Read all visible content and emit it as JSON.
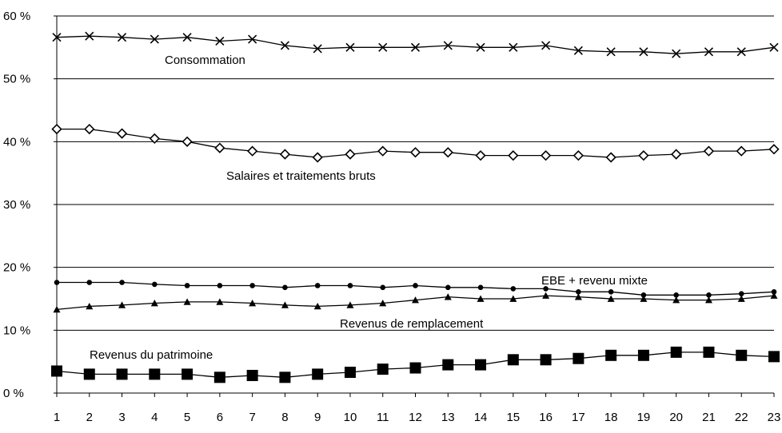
{
  "chart_data": {
    "type": "line",
    "title": "",
    "xlabel": "",
    "ylabel": "",
    "x": [
      1,
      2,
      3,
      4,
      5,
      6,
      7,
      8,
      9,
      10,
      11,
      12,
      13,
      14,
      15,
      16,
      17,
      18,
      19,
      20,
      21,
      22,
      23
    ],
    "x_tick_labels": [
      "1",
      "2",
      "3",
      "4",
      "5",
      "6",
      "7",
      "8",
      "9",
      "10",
      "11",
      "12",
      "13",
      "14",
      "15",
      "16",
      "17",
      "18",
      "19",
      "20",
      "21",
      "22",
      "23"
    ],
    "ylim": [
      0,
      60
    ],
    "y_ticks": [
      0,
      10,
      20,
      30,
      40,
      50,
      60
    ],
    "y_tick_labels": [
      "0 %",
      "10 %",
      "20 %",
      "30 %",
      "40 %",
      "50 %",
      "60 %"
    ],
    "grid": "horizontal",
    "legend": "none (series labelled directly on the chart)",
    "series": [
      {
        "name": "Consommation",
        "marker": "x",
        "values": [
          56.6,
          56.8,
          56.6,
          56.3,
          56.6,
          56.0,
          56.3,
          55.3,
          54.8,
          55.0,
          55.0,
          55.0,
          55.3,
          55.0,
          55.0,
          55.3,
          54.5,
          54.3,
          54.3,
          54.0,
          54.3,
          54.3,
          55.0
        ]
      },
      {
        "name": "Salaires et traitements bruts",
        "marker": "diamond-open",
        "values": [
          42.0,
          42.0,
          41.3,
          40.5,
          40.0,
          39.0,
          38.5,
          38.0,
          37.5,
          38.0,
          38.5,
          38.3,
          38.3,
          37.8,
          37.8,
          37.8,
          37.8,
          37.5,
          37.8,
          38.0,
          38.5,
          38.5,
          38.8
        ]
      },
      {
        "name": "EBE + revenu mixte",
        "marker": "circle-filled",
        "values": [
          17.6,
          17.6,
          17.6,
          17.3,
          17.1,
          17.1,
          17.1,
          16.8,
          17.1,
          17.1,
          16.8,
          17.1,
          16.8,
          16.8,
          16.6,
          16.6,
          16.1,
          16.1,
          15.6,
          15.6,
          15.6,
          15.8,
          16.1
        ]
      },
      {
        "name": "Revenus de remplacement",
        "marker": "triangle-filled",
        "values": [
          13.3,
          13.8,
          14.0,
          14.3,
          14.5,
          14.5,
          14.3,
          14.0,
          13.8,
          14.0,
          14.3,
          14.8,
          15.3,
          15.0,
          15.0,
          15.5,
          15.3,
          15.0,
          15.0,
          14.8,
          14.8,
          15.0,
          15.5
        ]
      },
      {
        "name": "Revenus du patrimoine",
        "marker": "square-filled",
        "values": [
          3.5,
          3.0,
          3.0,
          3.0,
          3.0,
          2.5,
          2.8,
          2.5,
          3.0,
          3.3,
          3.8,
          4.0,
          4.5,
          4.5,
          5.3,
          5.3,
          5.5,
          6.0,
          6.0,
          6.5,
          6.5,
          6.0,
          5.8
        ]
      }
    ]
  },
  "colors": {
    "line": "#000000",
    "grid": "#000000",
    "background": "#ffffff"
  }
}
